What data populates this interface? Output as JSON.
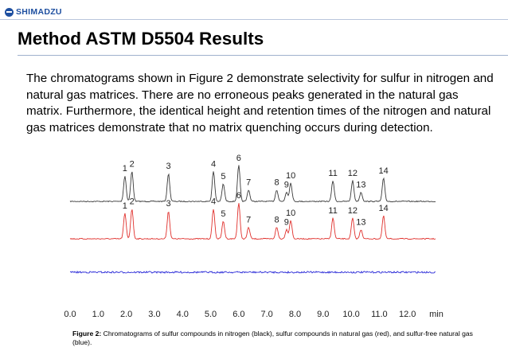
{
  "brand": {
    "name": "SHIMADZU",
    "logo_icon": "shimadzu-logo-icon"
  },
  "title": "Method ASTM D5504 Results",
  "body_text": "The chromatograms shown in Figure 2 demonstrate selectivity for sulfur in nitrogen and natural gas matrices. There are no erroneous peaks generated in the natural gas matrix. Furthermore, the identical height and retention times of the nitrogen and natural gas matrices demonstrate that no matrix quenching occurs during detection.",
  "caption": {
    "label": "Figure 2:",
    "text": " Chromatograms of sulfur compounds in nitrogen (black), sulfur compounds in natural gas (red), and sulfur-free natural gas (blue)."
  },
  "colors": {
    "brand": "#1e4fa0",
    "nitrogen": "#3a3a3a",
    "natural_gas": "#e0302c",
    "sulfur_free": "#2c2cd8"
  },
  "chart_data": {
    "type": "line",
    "xlabel": "min",
    "xlim": [
      0,
      13
    ],
    "x_ticks": [
      "0.0",
      "1.0",
      "2.0",
      "3.0",
      "4.0",
      "5.0",
      "6.0",
      "7.0",
      "8.0",
      "9.0",
      "10.0",
      "11.0",
      "12.0"
    ],
    "peaks": [
      {
        "label": "1",
        "rt": 1.95,
        "height": 0.55
      },
      {
        "label": "2",
        "rt": 2.2,
        "height": 0.65
      },
      {
        "label": "3",
        "rt": 3.5,
        "height": 0.6
      },
      {
        "label": "4",
        "rt": 5.1,
        "height": 0.65
      },
      {
        "label": "5",
        "rt": 5.45,
        "height": 0.38
      },
      {
        "label": "6",
        "rt": 6.0,
        "height": 0.78
      },
      {
        "label": "7",
        "rt": 6.35,
        "height": 0.25
      },
      {
        "label": "8",
        "rt": 7.35,
        "height": 0.25
      },
      {
        "label": "9",
        "rt": 7.7,
        "height": 0.2
      },
      {
        "label": "10",
        "rt": 7.85,
        "height": 0.4
      },
      {
        "label": "11",
        "rt": 9.35,
        "height": 0.45
      },
      {
        "label": "12",
        "rt": 10.05,
        "height": 0.45
      },
      {
        "label": "13",
        "rt": 10.35,
        "height": 0.2
      },
      {
        "label": "14",
        "rt": 11.15,
        "height": 0.5
      }
    ],
    "series": [
      {
        "color": "#3a3a3a"
      },
      {
        "color": "#e0302c"
      },
      {
        "color": "#2c2cd8"
      }
    ]
  }
}
